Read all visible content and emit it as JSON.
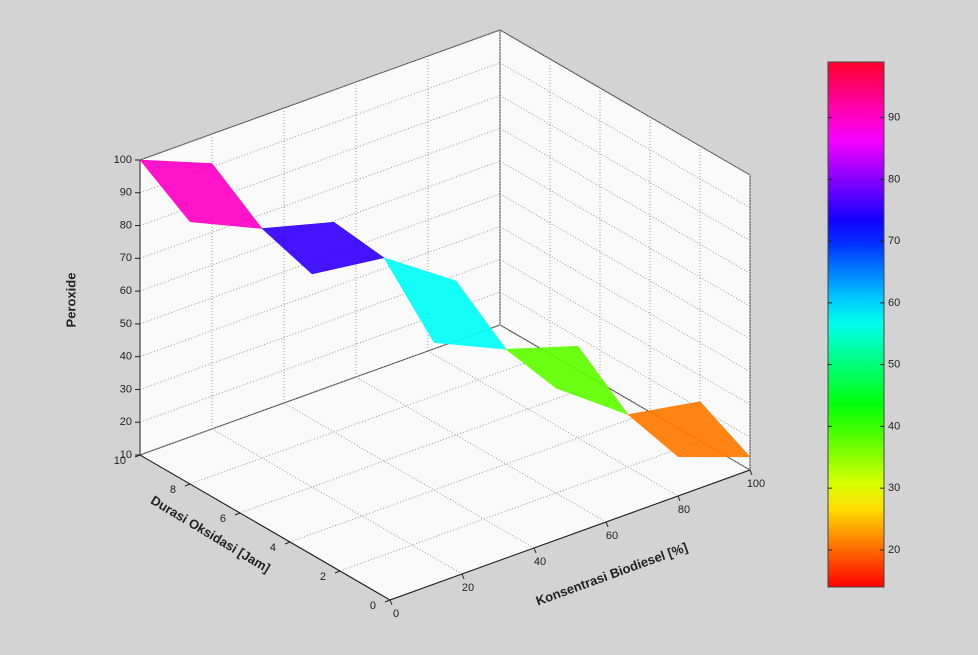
{
  "chart_data": {
    "type": "surface",
    "zlabel": "Peroxide",
    "xlabel": "Konsentrasi Biodiesel [%]",
    "ylabel": "Durasi Oksidasi [Jam]",
    "x": [
      0,
      20,
      40,
      60,
      80,
      100
    ],
    "y": [
      0,
      2,
      4,
      6,
      8,
      10
    ],
    "z": [
      [
        null,
        null,
        null,
        null,
        22,
        14
      ],
      [
        null,
        null,
        null,
        42,
        26,
        22
      ],
      [
        null,
        null,
        55,
        45,
        38,
        null
      ],
      [
        null,
        75,
        72,
        57,
        null,
        null
      ],
      [
        90,
        80,
        74,
        null,
        null,
        null
      ],
      [
        100,
        91,
        null,
        null,
        null,
        null
      ]
    ],
    "xlim": [
      0,
      100
    ],
    "xticks": [
      0,
      20,
      40,
      60,
      80,
      100
    ],
    "ylim": [
      0,
      10
    ],
    "yticks": [
      0,
      2,
      4,
      6,
      8,
      10
    ],
    "zlim": [
      10,
      100
    ],
    "zticks": [
      10,
      20,
      30,
      40,
      50,
      60,
      70,
      80,
      90,
      100
    ],
    "clim": [
      14,
      99
    ],
    "cticks": [
      20,
      30,
      40,
      50,
      60,
      70,
      80,
      90
    ],
    "colormap": "hsv",
    "grid": true
  }
}
